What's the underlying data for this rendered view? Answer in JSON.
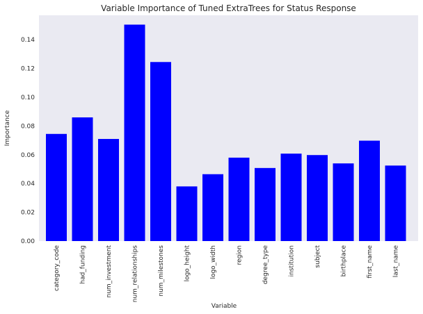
{
  "chart_data": {
    "type": "bar",
    "title": "Variable Importance of Tuned ExtraTrees for Status Response",
    "xlabel": "Variable",
    "ylabel": "Importance",
    "categories": [
      "category_code",
      "had_funding",
      "num_investment",
      "num_relationships",
      "num_milestones",
      "logo_height",
      "logo_width",
      "region",
      "degree_type",
      "institution",
      "subject",
      "birthplace",
      "first_name",
      "last_name"
    ],
    "values": [
      0.0745,
      0.086,
      0.071,
      0.1505,
      0.1245,
      0.038,
      0.0465,
      0.058,
      0.0508,
      0.0608,
      0.0598,
      0.054,
      0.0698,
      0.0525
    ],
    "ylim": [
      0,
      0.157
    ],
    "yticks": [
      "0.00",
      "0.02",
      "0.04",
      "0.06",
      "0.08",
      "0.10",
      "0.12",
      "0.14"
    ],
    "grid": false,
    "bar_color": "#0000ff",
    "plot_background": "#eaeaf2"
  }
}
